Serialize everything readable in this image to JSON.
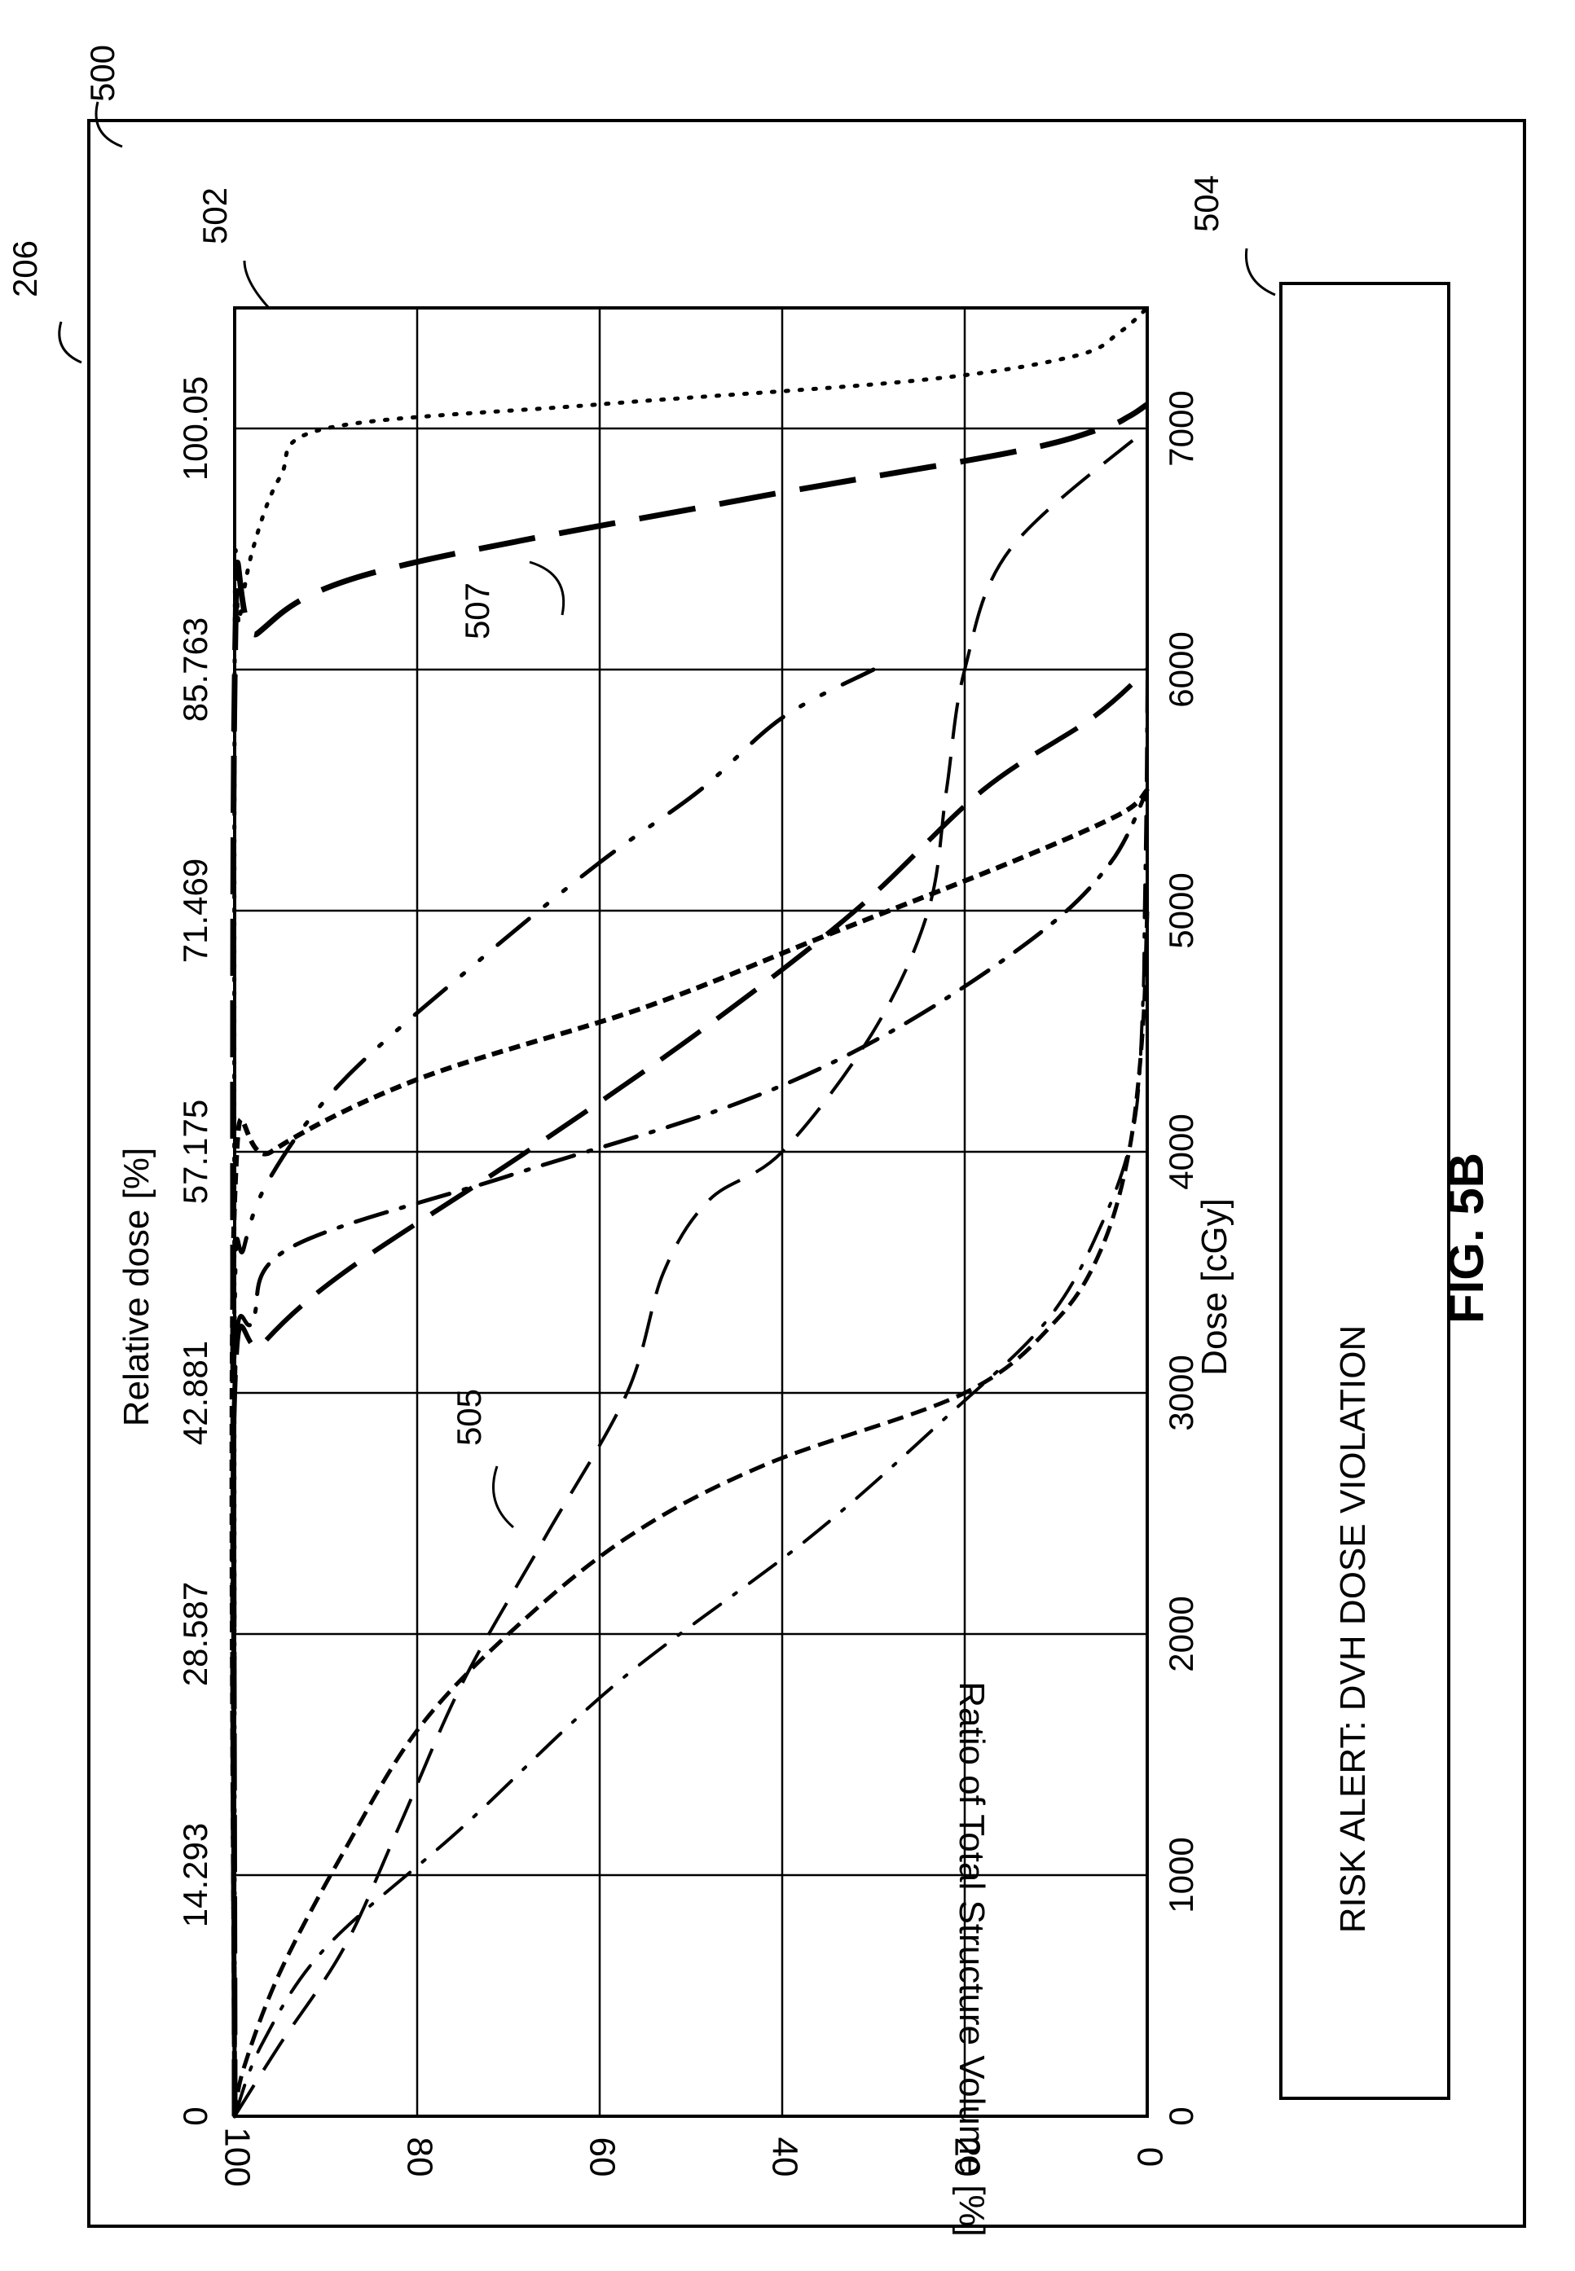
{
  "figure": {
    "label": "FIG. 5B",
    "refs": {
      "outer": "500",
      "screen": "206",
      "chart": "502",
      "alert_box": "504",
      "curve_a": "505",
      "curve_b": "507"
    }
  },
  "alert": {
    "text": "RISK ALERT:  DVH DOSE VIOLATION"
  },
  "chart_data": {
    "type": "line",
    "xlabel": "Dose [cGy]",
    "x2label": "Relative dose [%]",
    "ylabel": "Ratio of Total Structure Volume [%]",
    "xlim": [
      0,
      7500
    ],
    "ylim": [
      0,
      100
    ],
    "grid": true,
    "x_ticks": [
      0,
      1000,
      2000,
      3000,
      4000,
      5000,
      6000,
      7000
    ],
    "x_tick_labels": [
      "0",
      "1000",
      "2000",
      "3000",
      "4000",
      "5000",
      "6000",
      "7000"
    ],
    "x2_ticks": [
      0,
      1000,
      2000,
      3000,
      4000,
      5000,
      6000,
      7000
    ],
    "x2_tick_labels": [
      "0",
      "14.293",
      "28.587",
      "42.881",
      "57.175",
      "71.469",
      "85.763",
      "100.05"
    ],
    "y_ticks": [
      0,
      20,
      40,
      60,
      80,
      100
    ],
    "y_tick_labels": [
      "0",
      "20",
      "40",
      "60",
      "80",
      "100"
    ],
    "series": [
      {
        "style": "dotted-fine",
        "x": [
          0,
          6000,
          6200,
          6500,
          6800,
          7000,
          7100,
          7200,
          7300,
          7400,
          7500
        ],
        "y": [
          100,
          100,
          99.5,
          98,
          95,
          90,
          60,
          25,
          8,
          3,
          0
        ]
      },
      {
        "style": "long-dash-thick",
        "x": [
          0,
          5950,
          6150,
          6400,
          6700,
          6900,
          7000,
          7050,
          7100
        ],
        "y": [
          100,
          100,
          97.5,
          85,
          45,
          15,
          5,
          2,
          0
        ]
      },
      {
        "style": "dash-dot-dot",
        "x": [
          0,
          3300,
          3600,
          3900,
          4300,
          4800,
          5200,
          5500,
          5800,
          6000
        ],
        "y": [
          100,
          100,
          99,
          96,
          88,
          73,
          60,
          49,
          40,
          30
        ]
      },
      {
        "style": "long-dash",
        "x": [
          0,
          3000,
          3200,
          3500,
          4000,
          4500,
          5000,
          5500,
          5800,
          6000
        ],
        "y": [
          100,
          100,
          97,
          88,
          68,
          49,
          32,
          18,
          6,
          0
        ]
      },
      {
        "style": "short-dash",
        "x": [
          0,
          3800,
          4000,
          4300,
          4600,
          4900,
          5200,
          5400,
          5500
        ],
        "y": [
          100,
          100,
          96,
          80,
          55,
          35,
          15,
          3,
          0
        ]
      },
      {
        "style": "dash-dot",
        "x": [
          0,
          3000,
          3300,
          3600,
          3900,
          4200,
          4500,
          4900,
          5200,
          5500
        ],
        "y": [
          100,
          100,
          98,
          94,
          70,
          45,
          28,
          12,
          4,
          0
        ]
      },
      {
        "style": "medium-dash",
        "x": [
          0,
          300,
          700,
          1200,
          1800,
          2400,
          3000,
          3500,
          3800,
          4000,
          4500,
          5000,
          5500,
          6000,
          6500,
          7000
        ],
        "y": [
          100,
          95,
          88,
          82,
          75,
          66,
          57,
          53,
          48,
          40,
          30,
          24,
          22,
          20,
          15,
          0
        ]
      },
      {
        "style": "short-dash-b",
        "x": [
          0,
          200,
          600,
          1100,
          1600,
          2000,
          2400,
          2700,
          3000,
          3300,
          3600,
          4000,
          4500,
          5000
        ],
        "y": [
          100,
          99,
          95,
          88,
          80,
          70,
          57,
          42,
          20,
          10,
          5,
          2,
          0.5,
          0
        ]
      },
      {
        "style": "dash-dot-b",
        "x": [
          0,
          300,
          700,
          1200,
          1800,
          2400,
          2900,
          3300,
          3700,
          4100,
          4600,
          5000,
          5500,
          6000
        ],
        "y": [
          100,
          97,
          90,
          75,
          58,
          37,
          22,
          11,
          5,
          1.5,
          0.5,
          0.3,
          0.1,
          0
        ]
      }
    ]
  }
}
